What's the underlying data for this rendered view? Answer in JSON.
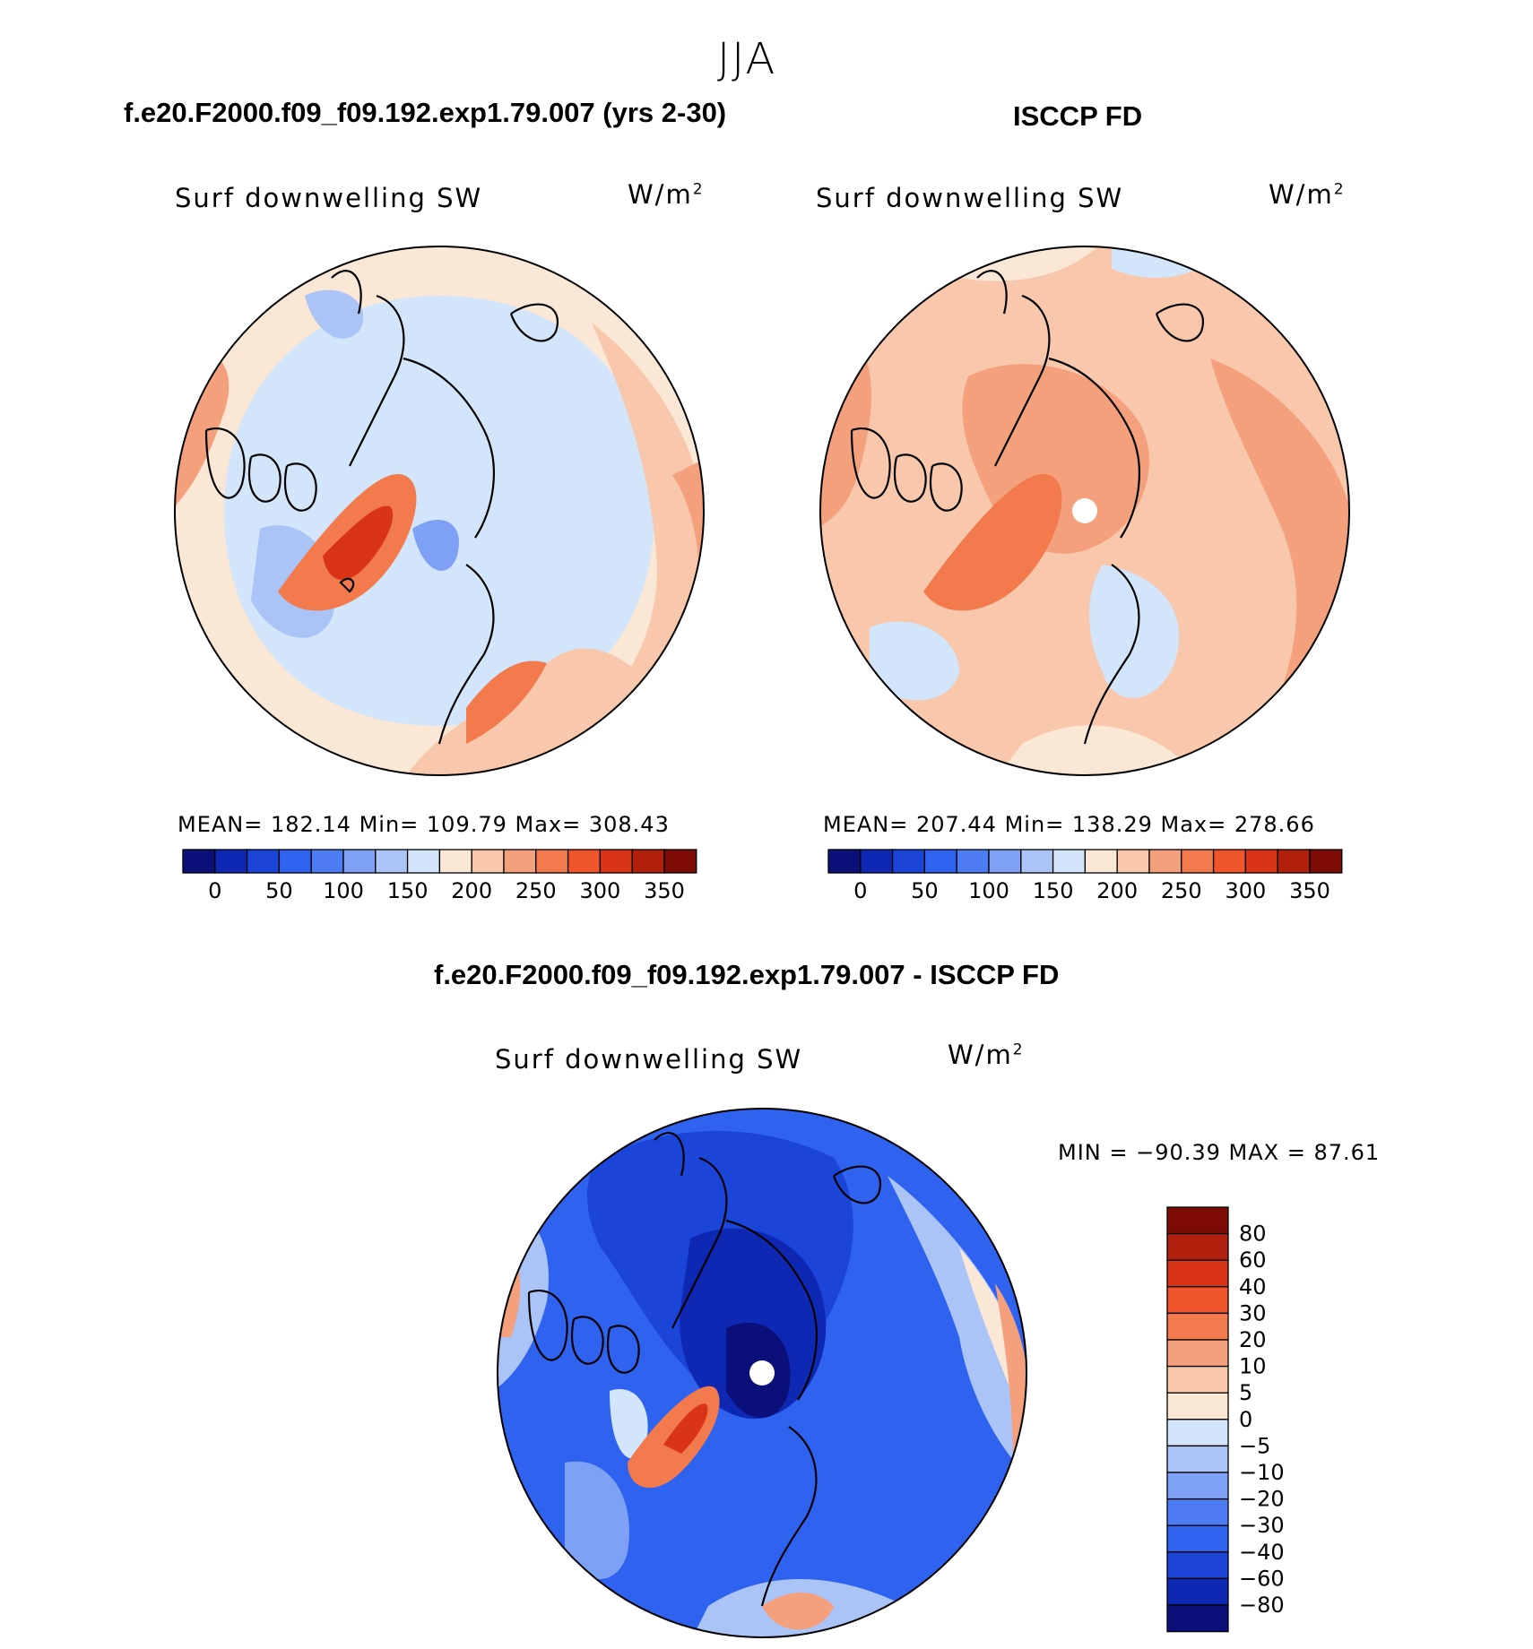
{
  "figure": {
    "title": "JJA",
    "difference_title": "f.e20.F2000.f09_f09.192.exp1.79.007 - ISCCP FD"
  },
  "panels": [
    {
      "title": "f.e20.F2000.f09_f09.192.exp1.79.007 (yrs 2-30)",
      "variable": "Surf downwelling SW",
      "units_base": "W/m",
      "units_exp": "2",
      "stats": "MEAN= 182.14   Min= 109.79   Max= 308.43"
    },
    {
      "title": "ISCCP FD",
      "variable": "Surf downwelling SW",
      "units_base": "W/m",
      "units_exp": "2",
      "stats": "MEAN= 207.44   Min= 138.29   Max= 278.66"
    },
    {
      "title": "",
      "variable": "Surf downwelling SW",
      "units_base": "W/m",
      "units_exp": "2",
      "stats": "MIN =  −90.39 MAX =   87.61"
    }
  ],
  "colorbars": {
    "absolute": {
      "colors": [
        "#0a0f7a",
        "#0f28b4",
        "#1a45d8",
        "#2f62ef",
        "#4e7cf2",
        "#7ea1f6",
        "#aac4f7",
        "#d2e5fa",
        "#fbe7d6",
        "#f8c7ac",
        "#f4a07c",
        "#f27a4c",
        "#f0542a",
        "#d93416",
        "#b0200d",
        "#7d0b05"
      ],
      "labels": [
        "0",
        "50",
        "100",
        "150",
        "200",
        "250",
        "300",
        "350"
      ]
    },
    "difference": {
      "colors": [
        "#7d0b05",
        "#b0200d",
        "#d93416",
        "#f0542a",
        "#f27a4c",
        "#f4a07c",
        "#f8c7ac",
        "#fbe7d6",
        "#d2e5fa",
        "#aac4f7",
        "#7ea1f6",
        "#4e7cf2",
        "#2f62ef",
        "#1a45d8",
        "#0f28b4",
        "#0a0f7a"
      ],
      "labels": [
        "80",
        "60",
        "40",
        "30",
        "20",
        "10",
        "5",
        "0",
        "−5",
        "−10",
        "−20",
        "−30",
        "−40",
        "−60",
        "−80"
      ]
    }
  }
}
